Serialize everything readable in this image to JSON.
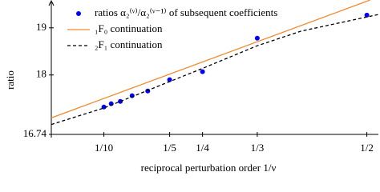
{
  "chart_data": {
    "type": "scatter",
    "x_label": "reciprocal perturbation order 1/ν",
    "y_label": "ratio",
    "xlim": [
      0.02,
      0.52
    ],
    "ylim": [
      16.74,
      19.59
    ],
    "xticks": [
      {
        "value": 0.1,
        "label": "1/10"
      },
      {
        "value": 0.2,
        "label": "1/5"
      },
      {
        "value": 0.25,
        "label": "1/4"
      },
      {
        "value": 0.3333,
        "label": "1/3"
      },
      {
        "value": 0.5,
        "label": "1/2"
      }
    ],
    "yticks": [
      16.74,
      18,
      19
    ],
    "series": [
      {
        "name": "ratios α₂⁽ᵛ⁾/α₂⁽ᵛ⁻¹⁾ of subsequent coefficients",
        "type": "scatter",
        "color": "#0000ff",
        "x": [
          0.1,
          0.1111,
          0.125,
          0.1429,
          0.1667,
          0.2,
          0.25,
          0.3333,
          0.5
        ],
        "values": [
          17.32,
          17.39,
          17.44,
          17.56,
          17.66,
          17.9,
          18.07,
          18.78,
          19.27
        ]
      },
      {
        "name": "₁F₀ continuation",
        "type": "line",
        "color": "#f28a2e",
        "dash": "solid",
        "x": [
          0.02,
          0.505
        ],
        "values": [
          17.09,
          19.59
        ]
      },
      {
        "name": "₂F₁ continuation",
        "type": "line",
        "color": "#000000",
        "dash": "dashed",
        "x": [
          0.02,
          0.1,
          0.2,
          0.25,
          0.3333,
          0.4,
          0.52
        ],
        "values": [
          16.95,
          17.3,
          17.86,
          18.14,
          18.62,
          18.93,
          19.29
        ]
      }
    ]
  }
}
